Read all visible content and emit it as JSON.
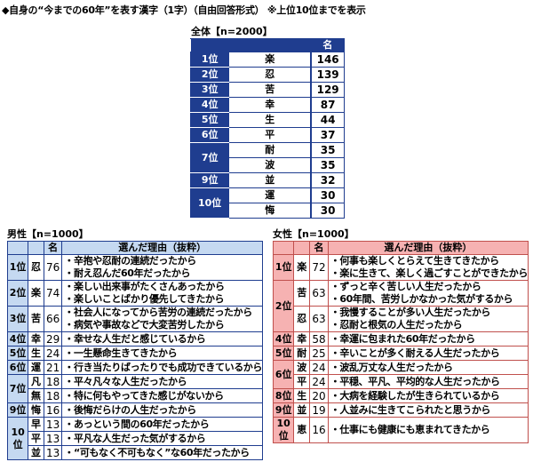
{
  "title": "◆自身の“今までの60年”を表す漢字（1字）（自由回答形式） ※上位10位までを表示",
  "overall": {
    "caption": "全体【n=2000】",
    "count_header": "名",
    "ranks": [
      {
        "rank": "1位",
        "items": [
          {
            "kanji": "楽",
            "count": "146"
          }
        ]
      },
      {
        "rank": "2位",
        "items": [
          {
            "kanji": "忍",
            "count": "139"
          }
        ]
      },
      {
        "rank": "3位",
        "items": [
          {
            "kanji": "苦",
            "count": "129"
          }
        ]
      },
      {
        "rank": "4位",
        "items": [
          {
            "kanji": "幸",
            "count": "87"
          }
        ]
      },
      {
        "rank": "5位",
        "items": [
          {
            "kanji": "生",
            "count": "44"
          }
        ]
      },
      {
        "rank": "6位",
        "items": [
          {
            "kanji": "平",
            "count": "37"
          }
        ]
      },
      {
        "rank": "7位",
        "items": [
          {
            "kanji": "耐",
            "count": "35"
          },
          {
            "kanji": "波",
            "count": "35"
          }
        ]
      },
      {
        "rank": "9位",
        "items": [
          {
            "kanji": "並",
            "count": "32"
          }
        ]
      },
      {
        "rank": "10位",
        "items": [
          {
            "kanji": "運",
            "count": "30"
          },
          {
            "kanji": "悔",
            "count": "30"
          }
        ]
      }
    ]
  },
  "male": {
    "caption": "男性【n=1000】",
    "count_header": "名",
    "reason_header": "選んだ理由（抜粋）",
    "ranks": [
      {
        "rank": "1位",
        "items": [
          {
            "kanji": "忍",
            "count": "76",
            "reasons": [
              "・辛抱や忍耐の連続だったから",
              "・耐え忍んだ60年だったから"
            ]
          }
        ]
      },
      {
        "rank": "2位",
        "items": [
          {
            "kanji": "楽",
            "count": "74",
            "reasons": [
              "・楽しい出来事がたくさんあったから",
              "・楽しいことばかり優先してきたから"
            ]
          }
        ]
      },
      {
        "rank": "3位",
        "items": [
          {
            "kanji": "苦",
            "count": "66",
            "reasons": [
              "・社会人になってから苦労の連続だったから",
              "・病気や事故などで大変苦労したから"
            ]
          }
        ]
      },
      {
        "rank": "4位",
        "items": [
          {
            "kanji": "幸",
            "count": "29",
            "reasons": [
              "・幸せな人生だと感じているから"
            ]
          }
        ]
      },
      {
        "rank": "5位",
        "items": [
          {
            "kanji": "生",
            "count": "24",
            "reasons": [
              "・一生懸命生きてきたから"
            ]
          }
        ]
      },
      {
        "rank": "6位",
        "items": [
          {
            "kanji": "運",
            "count": "21",
            "reasons": [
              "・行き当たりばったりでも成功できているから"
            ]
          }
        ]
      },
      {
        "rank": "7位",
        "items": [
          {
            "kanji": "凡",
            "count": "18",
            "reasons": [
              "・平々凡々な人生だったから"
            ]
          },
          {
            "kanji": "無",
            "count": "18",
            "reasons": [
              "・特に何もやってきた感じがないから"
            ]
          }
        ]
      },
      {
        "rank": "9位",
        "items": [
          {
            "kanji": "悔",
            "count": "16",
            "reasons": [
              "・後悔だらけの人生だったから"
            ]
          }
        ]
      },
      {
        "rank": "10位",
        "items": [
          {
            "kanji": "早",
            "count": "13",
            "reasons": [
              "・あっという間の60年だったから"
            ]
          },
          {
            "kanji": "平",
            "count": "13",
            "reasons": [
              "・平凡な人生だった気がするから"
            ]
          },
          {
            "kanji": "並",
            "count": "13",
            "reasons": [
              "・“可もなく不可もなく”な60年だったから"
            ]
          }
        ]
      }
    ]
  },
  "female": {
    "caption": "女性【n=1000】",
    "count_header": "名",
    "reason_header": "選んだ理由（抜粋）",
    "ranks": [
      {
        "rank": "1位",
        "items": [
          {
            "kanji": "楽",
            "count": "72",
            "reasons": [
              "・何事も楽しくとらえて生きてきたから",
              "・楽に生きて、楽しく過ごすことができたから"
            ]
          }
        ]
      },
      {
        "rank": "2位",
        "items": [
          {
            "kanji": "苦",
            "count": "63",
            "reasons": [
              "・ずっと辛く苦しい人生だったから",
              "・60年間、苦労しかなかった気がするから"
            ]
          },
          {
            "kanji": "忍",
            "count": "63",
            "reasons": [
              "・我慢することが多い人生だったから",
              "・忍耐と根気の人生だったから"
            ]
          }
        ]
      },
      {
        "rank": "4位",
        "items": [
          {
            "kanji": "幸",
            "count": "58",
            "reasons": [
              "・幸運に包まれた60年だったから"
            ]
          }
        ]
      },
      {
        "rank": "5位",
        "items": [
          {
            "kanji": "耐",
            "count": "25",
            "reasons": [
              "・辛いことが多く耐える人生だったから"
            ]
          }
        ]
      },
      {
        "rank": "6位",
        "items": [
          {
            "kanji": "波",
            "count": "24",
            "reasons": [
              "・波乱万丈な人生だったから"
            ]
          },
          {
            "kanji": "平",
            "count": "24",
            "reasons": [
              "・平穏、平凡、平均的な人生だったから"
            ]
          }
        ]
      },
      {
        "rank": "8位",
        "items": [
          {
            "kanji": "生",
            "count": "20",
            "reasons": [
              "・大病を経験したが生きられているから"
            ]
          }
        ]
      },
      {
        "rank": "9位",
        "items": [
          {
            "kanji": "並",
            "count": "19",
            "reasons": [
              "・人並みに生きてこられたと思うから"
            ]
          }
        ]
      },
      {
        "rank": "10位",
        "items": [
          {
            "kanji": "恵",
            "count": "16",
            "reasons": [
              "・仕事にも健康にも恵まれてきたから"
            ]
          }
        ]
      }
    ]
  },
  "colors": {
    "overall_header": "#1f3d8f",
    "male_header": "#c5d9f1",
    "female_header": "#f6b2b2",
    "male_border": "#1f3d8f",
    "female_border": "#c0504d"
  }
}
